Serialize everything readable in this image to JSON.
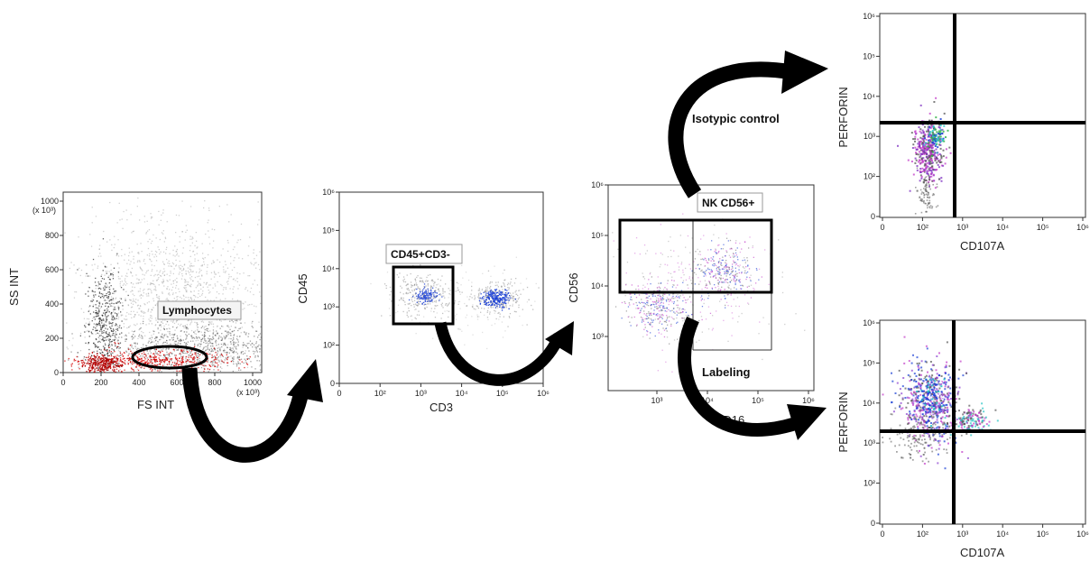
{
  "colors": {
    "background": "#ffffff",
    "dots_gray": "#555555",
    "dots_red": "#d40000",
    "dots_blue": "#1a3fd6",
    "dots_magenta": "#c23ac8",
    "dots_cyan": "#27c4c4",
    "gate": "#000000"
  },
  "panels": {
    "scatter_fs_ss": {
      "xlabel": "FS INT",
      "ylabel": "SS INT",
      "x_ticks": [
        "0",
        "200",
        "400",
        "600",
        "800",
        "1000"
      ],
      "y_ticks": [
        "0",
        "200",
        "400",
        "600",
        "800",
        "1000"
      ],
      "x_unit": "(x 10³)",
      "y_unit": "(x 10³)",
      "gate_label": "Lymphocytes"
    },
    "cd3_cd45": {
      "xlabel": "CD3",
      "ylabel": "CD45",
      "x_ticks": [
        "0",
        "10²",
        "10³",
        "10⁴",
        "10⁵",
        "10⁶"
      ],
      "y_ticks": [
        "0",
        "10²",
        "10³",
        "10⁴",
        "10⁵",
        "10⁶"
      ],
      "gate_label": "CD45+CD3-"
    },
    "cd16_cd56": {
      "xlabel": "CD16",
      "ylabel": "CD56",
      "x_ticks": [
        "10³",
        "10⁴",
        "10⁵",
        "10⁶"
      ],
      "y_ticks": [
        "10³",
        "10⁴",
        "10⁵",
        "10⁶"
      ],
      "gate_label": "NK CD56+"
    },
    "isotype": {
      "xlabel": "CD107A",
      "ylabel": "PERFORIN",
      "x_ticks": [
        "0",
        "10²",
        "10³",
        "10⁴",
        "10⁵",
        "10⁶"
      ],
      "y_ticks": [
        "0",
        "10²",
        "10³",
        "10⁴",
        "10⁵",
        "10⁶"
      ]
    },
    "labeling": {
      "xlabel": "CD107A",
      "ylabel": "PERFORIN",
      "x_ticks": [
        "0",
        "10²",
        "10³",
        "10⁴",
        "10⁵",
        "10⁶"
      ],
      "y_ticks": [
        "0",
        "10²",
        "10³",
        "10⁴",
        "10⁵",
        "10⁶"
      ]
    }
  },
  "flow_labels": {
    "isotypic_control": "Isotypic control",
    "labeling": "Labeling"
  }
}
